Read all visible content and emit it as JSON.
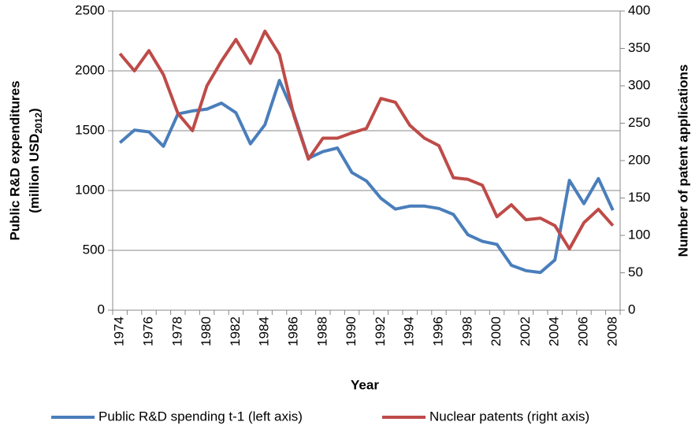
{
  "chart_data": {
    "type": "line",
    "ylabel": {
      "main": "Public R&D expenditures",
      "unit": "(million USD",
      "subscript": "2012",
      "close": ")"
    },
    "y2label": "Number of patent applications",
    "xlabel": "Year",
    "categories": [
      "1974",
      null,
      "1976",
      null,
      "1978",
      null,
      "1980",
      null,
      "1982",
      null,
      "1984",
      null,
      "1986",
      null,
      "1988",
      null,
      "1990",
      null,
      "1992",
      null,
      "1994",
      null,
      "1996",
      null,
      "1998",
      null,
      "2000",
      null,
      "2002",
      null,
      "2004",
      null,
      "2006",
      null,
      "2008"
    ],
    "series": [
      {
        "name": "Public R&D spending t-1 (left axis)",
        "color": "#4a7ebb",
        "axis": "y",
        "values": [
          1400,
          1505,
          1490,
          1370,
          1640,
          1665,
          1680,
          1730,
          1650,
          1390,
          1550,
          1920,
          1640,
          1270,
          1325,
          1355,
          1150,
          1080,
          935,
          845,
          870,
          870,
          850,
          800,
          630,
          575,
          550,
          375,
          330,
          315,
          420,
          1085,
          890,
          1100,
          835
        ]
      },
      {
        "name": "Nuclear patents (right axis)",
        "color": "#be4b48",
        "axis": "y2",
        "values": [
          343,
          320,
          347,
          315,
          263,
          240,
          300,
          333,
          362,
          330,
          373,
          342,
          260,
          202,
          230,
          230,
          237,
          243,
          283,
          278,
          247,
          230,
          220,
          177,
          175,
          167,
          125,
          141,
          121,
          123,
          113,
          82,
          117,
          135,
          113
        ]
      }
    ],
    "ylim": [
      0,
      2500
    ],
    "yticks": [
      0,
      500,
      1000,
      1500,
      2000,
      2500
    ],
    "y2lim": [
      0,
      400
    ],
    "y2ticks": [
      0,
      50,
      100,
      150,
      200,
      250,
      300,
      350,
      400
    ],
    "grid": true,
    "legend": "bottom"
  }
}
